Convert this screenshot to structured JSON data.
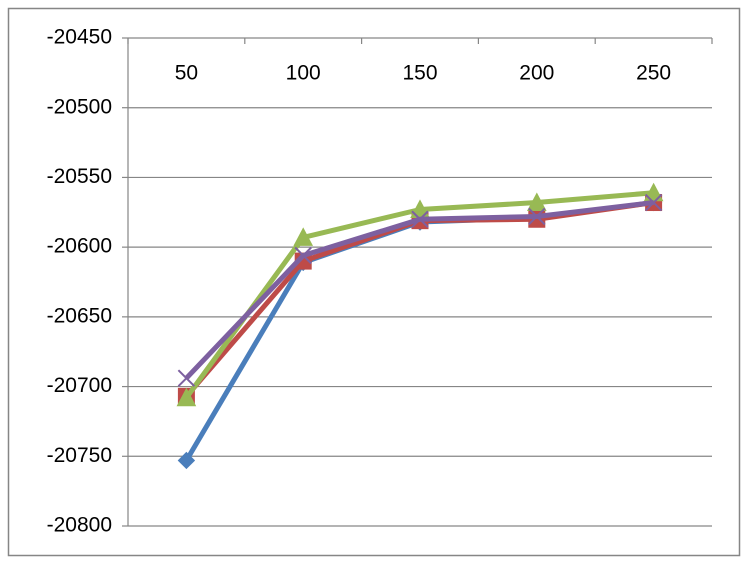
{
  "chart_data": {
    "type": "line",
    "categories": [
      50,
      100,
      150,
      200,
      250
    ],
    "series": [
      {
        "color": "#4a7ebb",
        "marker": "diamond",
        "values": [
          -20753,
          -20611,
          -20582,
          -20579,
          -20568
        ]
      },
      {
        "color": "#be4b48",
        "marker": "square",
        "values": [
          -20707,
          -20610,
          -20581,
          -20580,
          -20568
        ]
      },
      {
        "color": "#98b954",
        "marker": "triangle",
        "values": [
          -20708,
          -20593,
          -20573,
          -20568,
          -20561
        ]
      },
      {
        "color": "#7d60a0",
        "marker": "x",
        "values": [
          -20694,
          -20606,
          -20580,
          -20578,
          -20568
        ]
      }
    ],
    "ylim": [
      -20800,
      -20450
    ],
    "yticks": [
      -20800,
      -20750,
      -20700,
      -20650,
      -20600,
      -20550,
      -20500,
      -20450
    ],
    "grid": true
  }
}
